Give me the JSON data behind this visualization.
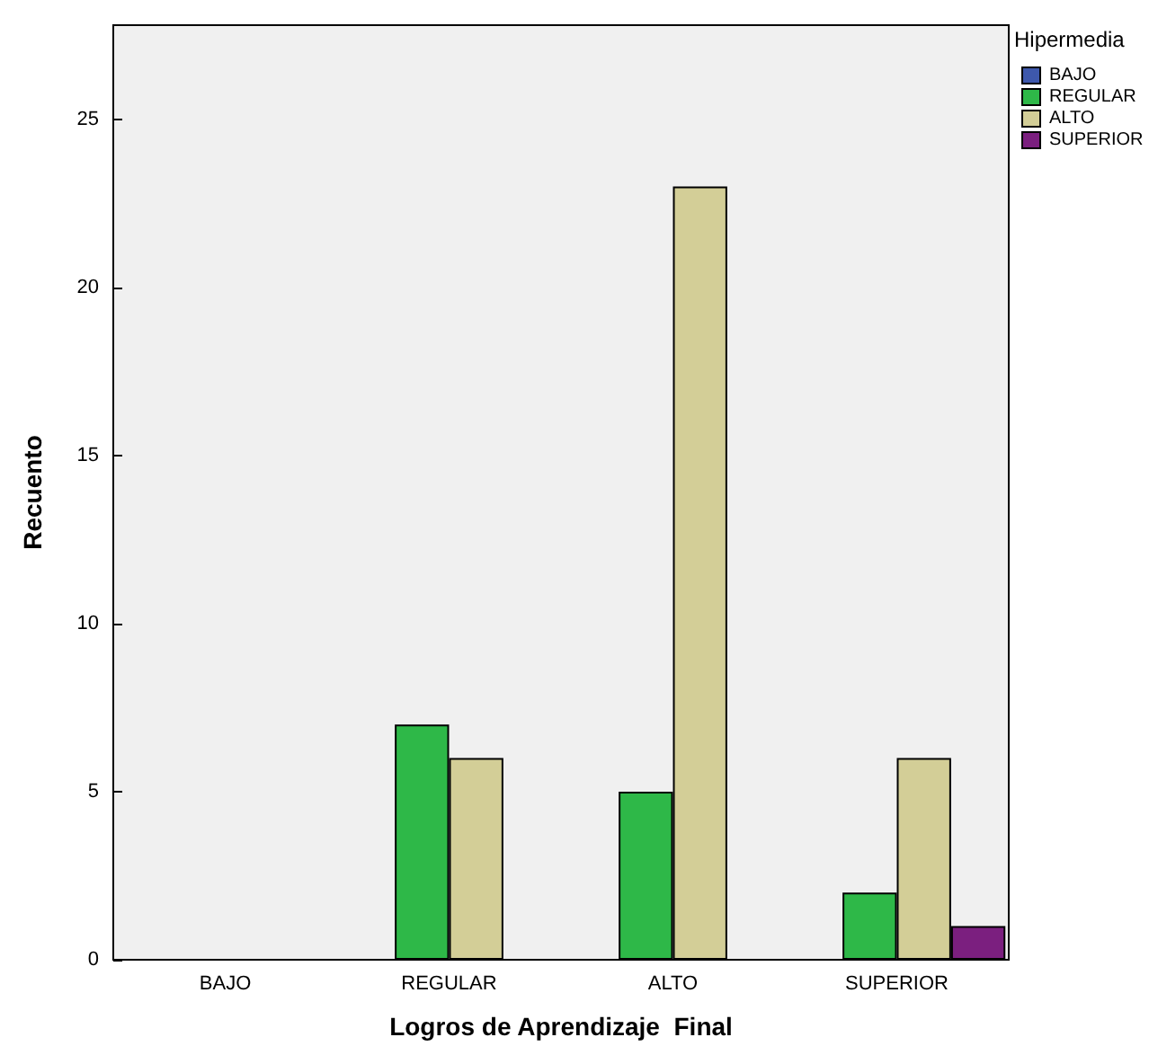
{
  "chart_data": {
    "type": "bar",
    "xlabel": "Logros de Aprendizaje  Final",
    "ylabel": "Recuento",
    "legend_title": "Hipermedia",
    "categories": [
      "BAJO",
      "REGULAR",
      "ALTO",
      "SUPERIOR"
    ],
    "series": [
      {
        "name": "BAJO",
        "color": "#3e58ac",
        "values": [
          null,
          null,
          null,
          null
        ]
      },
      {
        "name": "REGULAR",
        "color": "#2eb848",
        "values": [
          null,
          7,
          5,
          2
        ]
      },
      {
        "name": "ALTO",
        "color": "#d3ce97",
        "values": [
          null,
          6,
          23,
          6
        ]
      },
      {
        "name": "SUPERIOR",
        "color": "#7b1f7f",
        "values": [
          null,
          null,
          null,
          1
        ]
      }
    ],
    "ylim": [
      0,
      27.8
    ],
    "yticks": [
      0,
      5,
      10,
      15,
      20,
      25
    ],
    "grid": false,
    "legend": "top right"
  }
}
